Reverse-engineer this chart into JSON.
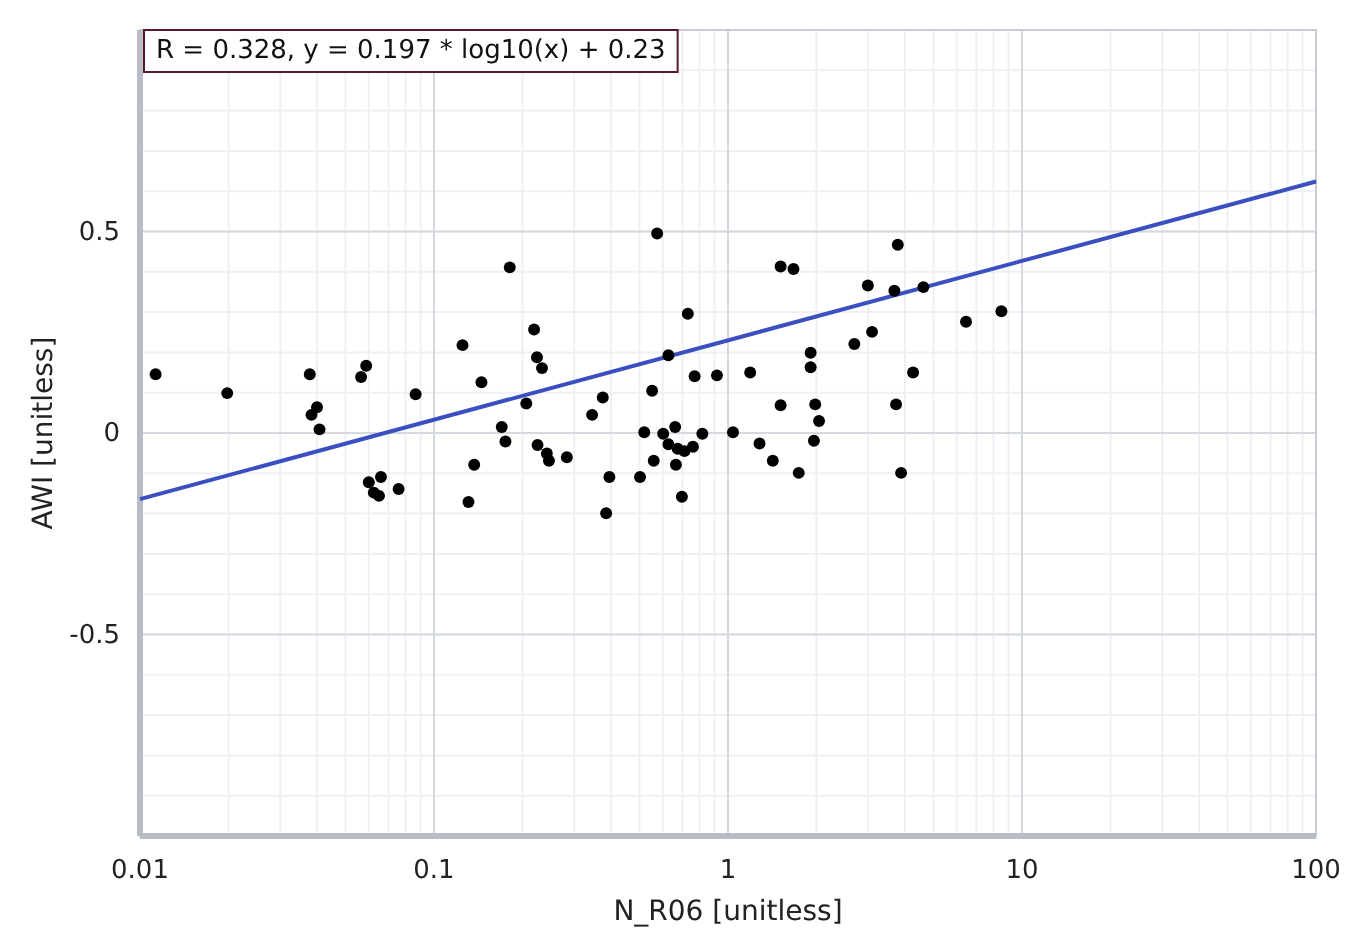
{
  "chart_data": {
    "type": "scatter",
    "xlabel": "N_R06 [unitless]",
    "ylabel": "AWI [unitless]",
    "log": "x",
    "grid": true,
    "xlim": [
      0.01,
      100
    ],
    "xticks": [
      0.01,
      0.1,
      1,
      10,
      100
    ],
    "ylim": [
      -1,
      1
    ],
    "yticks": [
      -0.5,
      0,
      0.5
    ],
    "annotations": [
      "R = 0.328, y = 0.197 * log10(x) + 0.23"
    ],
    "series": [
      {
        "marker": "circle",
        "color": "#000000",
        "x": [
          0.0113,
          0.0198,
          0.0378,
          0.0383,
          0.04,
          0.0408,
          0.0565,
          0.0588,
          0.06,
          0.0624,
          0.065,
          0.066,
          0.0758,
          0.0866,
          0.125,
          0.131,
          0.137,
          0.145,
          0.17,
          0.175,
          0.181,
          0.206,
          0.219,
          0.224,
          0.225,
          0.233,
          0.242,
          0.246,
          0.283,
          0.345,
          0.375,
          0.385,
          0.395,
          0.502,
          0.519,
          0.552,
          0.559,
          0.574,
          0.602,
          0.627,
          0.627,
          0.661,
          0.665,
          0.674,
          0.697,
          0.711,
          0.73,
          0.76,
          0.77,
          0.818,
          0.917,
          1.04,
          1.19,
          1.28,
          1.42,
          1.51,
          1.51,
          1.67,
          1.74,
          1.91,
          1.91,
          1.96,
          1.98,
          2.04,
          2.69,
          2.99,
          3.09,
          3.68,
          3.73,
          3.78,
          3.88,
          4.26,
          4.62,
          6.45,
          8.51
        ],
        "values": [
          0.146,
          0.099,
          0.146,
          0.045,
          0.064,
          0.009,
          0.139,
          0.167,
          -0.122,
          -0.148,
          -0.156,
          -0.109,
          -0.139,
          0.096,
          0.218,
          -0.171,
          -0.079,
          0.126,
          0.015,
          -0.021,
          0.411,
          0.073,
          0.257,
          0.188,
          -0.03,
          0.161,
          -0.051,
          -0.069,
          -0.06,
          0.045,
          0.088,
          -0.199,
          -0.109,
          -0.109,
          0.002,
          0.105,
          -0.069,
          0.495,
          -0.002,
          0.193,
          -0.028,
          0.015,
          -0.079,
          -0.039,
          -0.158,
          -0.045,
          0.296,
          -0.034,
          0.141,
          -0.002,
          0.143,
          0.002,
          0.15,
          -0.026,
          -0.069,
          0.413,
          0.069,
          0.407,
          -0.099,
          0.199,
          0.163,
          -0.019,
          0.071,
          0.03,
          0.221,
          0.366,
          0.251,
          0.353,
          0.071,
          0.467,
          -0.099,
          0.15,
          0.362,
          0.276,
          0.302
        ]
      },
      {
        "type": "line",
        "color": "#3a4fc0",
        "x": [
          0.01,
          100
        ],
        "values": [
          -0.164,
          0.624
        ]
      }
    ]
  }
}
